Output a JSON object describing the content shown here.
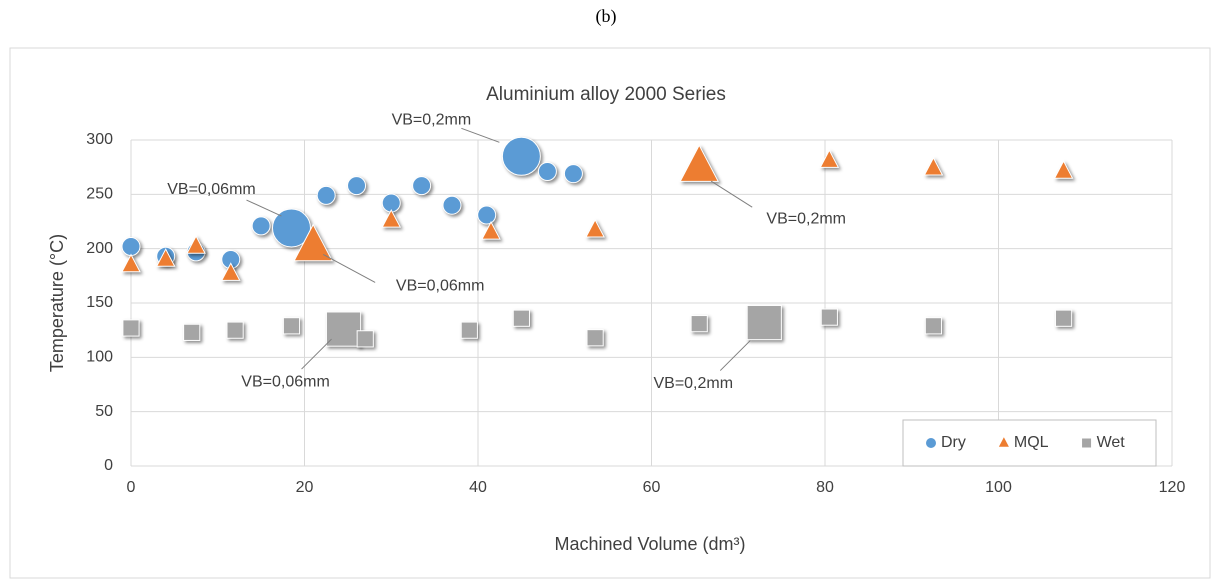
{
  "figure_label": "(b)",
  "chart_data": {
    "type": "scatter",
    "title": "Aluminium alloy 2000 Series",
    "xlabel": "Machined Volume (dm³)",
    "ylabel": "Temperature (°C)",
    "xlim": [
      0,
      120
    ],
    "xticks": [
      0,
      20,
      40,
      60,
      80,
      100,
      120
    ],
    "ylim": [
      0,
      300
    ],
    "yticks": [
      0,
      50,
      100,
      150,
      200,
      250,
      300
    ],
    "grid": true,
    "legend": "lower right",
    "series": [
      {
        "name": "Dry",
        "color": "#5b9bd5",
        "marker": "circle",
        "x": [
          0,
          4,
          7.5,
          11.5,
          15,
          18.5,
          22.5,
          26,
          30,
          33.5,
          37,
          41,
          45,
          48,
          51
        ],
        "values": [
          202,
          193,
          197,
          190,
          221,
          219,
          249,
          258,
          242,
          258,
          240,
          231,
          285,
          271,
          269
        ]
      },
      {
        "name": "MQL",
        "color": "#ed7d31",
        "marker": "triangle",
        "x": [
          0,
          4,
          7.5,
          11.5,
          21,
          30,
          41.5,
          53.5,
          65.5,
          80.5,
          92.5,
          107.5
        ],
        "values": [
          185,
          190,
          202,
          177,
          202,
          226,
          215,
          217,
          275,
          281,
          274,
          271
        ]
      },
      {
        "name": "Wet",
        "color": "#a5a5a5",
        "marker": "square",
        "x": [
          0,
          7,
          12,
          18.5,
          24.5,
          27,
          39,
          45,
          53.5,
          65.5,
          73,
          80.5,
          92.5,
          107.5
        ],
        "values": [
          127,
          123,
          125,
          129,
          126,
          117,
          125,
          136,
          118,
          131,
          132,
          137,
          129,
          136
        ]
      }
    ],
    "annotations": [
      {
        "text": "VB=0,06mm",
        "series": 0,
        "index": 5
      },
      {
        "text": "VB=0,2mm",
        "series": 0,
        "index": 12
      },
      {
        "text": "VB=0,06mm",
        "series": 1,
        "index": 4
      },
      {
        "text": "VB=0,2mm",
        "series": 1,
        "index": 8
      },
      {
        "text": "VB=0,06mm",
        "series": 2,
        "index": 4
      },
      {
        "text": "VB=0,2mm",
        "series": 2,
        "index": 10
      }
    ]
  }
}
